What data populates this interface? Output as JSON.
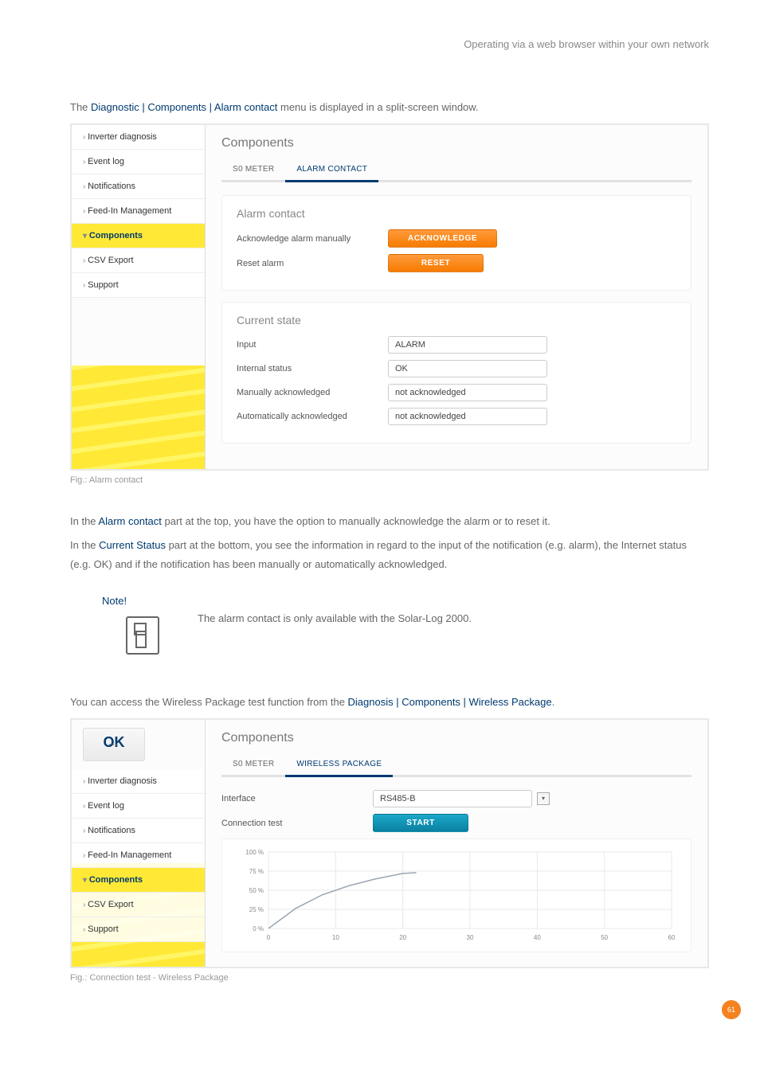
{
  "header": {
    "title": "Operating via a web browser within your own network"
  },
  "intro1_pre": "The ",
  "intro1_hl": "Diagnostic | Components | Alarm contact",
  "intro1_post": " menu is displayed in a split-screen window.",
  "figcap1": "Fig.: Alarm contact",
  "figcap2": "Fig.: Connection test - Wireless Package",
  "para1_pre": "In the ",
  "para1_hl": "Alarm contact",
  "para1_post": " part at the top, you have the option to manually acknowledge the alarm or to reset it.",
  "para2_pre": "In the ",
  "para2_hl": "Current Status",
  "para2_post": " part at the bottom, you see the information in regard to the input of the notification (e.g. alarm), the Internet status (e.g. OK) and if the notification has been manually or automatically acknowledged.",
  "note": {
    "title": "Note!",
    "text": "The alarm contact is only available with the Solar-Log 2000."
  },
  "para3_pre": "You can access the Wireless Package test function from the ",
  "para3_hl": "Diagnosis | Components | Wireless Package",
  "para3_post": ".",
  "page_number": "61",
  "sidebar": {
    "items": [
      "Inverter diagnosis",
      "Event log",
      "Notifications",
      "Feed-In Management",
      "Components",
      "CSV Export",
      "Support"
    ],
    "active_index": 4
  },
  "shot1": {
    "title": "Components",
    "tabs": [
      "S0 METER",
      "ALARM CONTACT"
    ],
    "active_tab": 1,
    "panel1_h": "Alarm contact",
    "row_ack": "Acknowledge alarm manually",
    "btn_ack": "ACKNOWLEDGE",
    "row_reset": "Reset alarm",
    "btn_reset": "RESET",
    "panel2_h": "Current state",
    "rows": [
      {
        "label": "Input",
        "value": "ALARM"
      },
      {
        "label": "Internal status",
        "value": "OK"
      },
      {
        "label": "Manually acknowledged",
        "value": "not acknowledged"
      },
      {
        "label": "Automatically acknowledged",
        "value": "not acknowledged"
      }
    ]
  },
  "shot2": {
    "title": "Components",
    "tabs": [
      "S0 METER",
      "WIRELESS PACKAGE"
    ],
    "active_tab": 1,
    "row_iface": "Interface",
    "iface_val": "RS485-B",
    "row_conn": "Connection test",
    "btn_start": "START",
    "logo_text": "OK",
    "chart": {
      "ylabels": [
        "100 %",
        "75 %",
        "50 %",
        "25 %",
        "0 %"
      ],
      "xlabels": [
        "0",
        "10",
        "20",
        "30",
        "40",
        "50",
        "60"
      ],
      "xlim": [
        0,
        60
      ],
      "ylim": [
        0,
        100
      ],
      "line_color": "#9aa6b2",
      "grid_color": "#e8e8e8",
      "points": [
        [
          0,
          0
        ],
        [
          4,
          26
        ],
        [
          8,
          44
        ],
        [
          12,
          56
        ],
        [
          16,
          65
        ],
        [
          20,
          72
        ],
        [
          22,
          73
        ]
      ]
    }
  }
}
